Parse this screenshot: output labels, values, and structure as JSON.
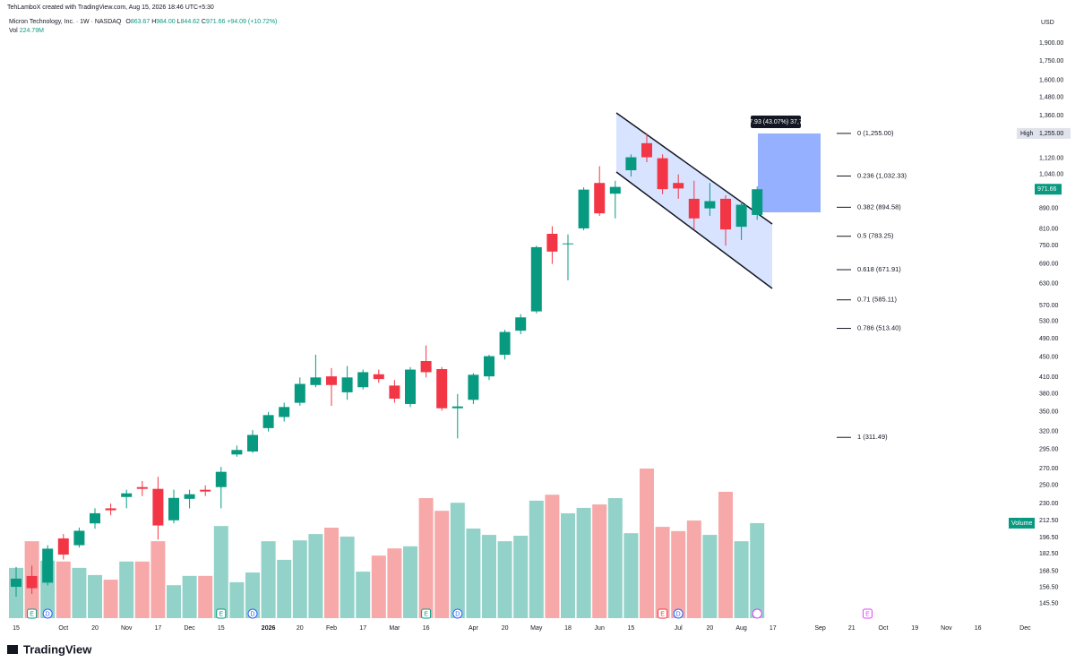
{
  "header": {
    "credit": "TehLamboX created with TradingView.com, Aug 15, 2026 18:46 UTC+5:30",
    "symbol": "Micron Technology, Inc. · 1W · NASDAQ",
    "ohlc": [
      {
        "key": "O",
        "text": "863.67"
      },
      {
        "key": "H",
        "text": "984.00"
      },
      {
        "key": "L",
        "text": "844.62"
      },
      {
        "key": "C",
        "text": "971.66"
      }
    ],
    "change": "+94.09 (+10.72%)",
    "volume": {
      "key": "Vol",
      "text": "224.79M"
    }
  },
  "brand": "TradingView",
  "chart_data": {
    "type": "candlestick",
    "currency": "USD",
    "log_scale": true,
    "grid": false,
    "categories": [
      "15",
      null,
      null,
      "Oct",
      null,
      "20",
      null,
      "Nov",
      null,
      "17",
      null,
      "Dec",
      null,
      "15",
      null,
      null,
      "2026",
      null,
      "20",
      null,
      "Feb",
      null,
      "17",
      null,
      "Mar",
      null,
      "16",
      null,
      null,
      "Apr",
      null,
      "20",
      null,
      "May",
      null,
      "18",
      null,
      "Jun",
      null,
      "15",
      null,
      null,
      "Jul",
      null,
      "20",
      null,
      "Aug",
      null,
      "17",
      null,
      null,
      "Sep",
      null,
      "21",
      null,
      "Oct",
      null,
      "19",
      null,
      "Nov",
      null,
      "16",
      null,
      null,
      "Dec"
    ],
    "series": [
      {
        "up_color": "#089981",
        "down_color": "#f23645",
        "values": [
          {
            "open": 157,
            "high": 172,
            "low": 150,
            "close": 163
          },
          {
            "open": 165,
            "high": 173,
            "low": 152,
            "close": 156
          },
          {
            "open": 160,
            "high": 190,
            "low": 158,
            "close": 187
          },
          {
            "open": 196,
            "high": 200,
            "low": 178,
            "close": 182
          },
          {
            "open": 190,
            "high": 206,
            "low": 188,
            "close": 203
          },
          {
            "open": 210,
            "high": 225,
            "low": 205,
            "close": 220
          },
          {
            "open": 225,
            "high": 230,
            "low": 218,
            "close": 223
          },
          {
            "open": 237,
            "high": 245,
            "low": 225,
            "close": 241
          },
          {
            "open": 248,
            "high": 255,
            "low": 238,
            "close": 246
          },
          {
            "open": 246,
            "high": 260,
            "low": 195,
            "close": 208
          },
          {
            "open": 213,
            "high": 245,
            "low": 210,
            "close": 236
          },
          {
            "open": 235,
            "high": 245,
            "low": 225,
            "close": 240
          },
          {
            "open": 245,
            "high": 250,
            "low": 238,
            "close": 243
          },
          {
            "open": 248,
            "high": 272,
            "low": 225,
            "close": 266
          },
          {
            "open": 288,
            "high": 300,
            "low": 285,
            "close": 294
          },
          {
            "open": 292,
            "high": 322,
            "low": 290,
            "close": 315
          },
          {
            "open": 325,
            "high": 350,
            "low": 320,
            "close": 345
          },
          {
            "open": 342,
            "high": 365,
            "low": 335,
            "close": 358
          },
          {
            "open": 365,
            "high": 410,
            "low": 360,
            "close": 398
          },
          {
            "open": 396,
            "high": 455,
            "low": 392,
            "close": 410
          },
          {
            "open": 412,
            "high": 428,
            "low": 360,
            "close": 396
          },
          {
            "open": 383,
            "high": 432,
            "low": 370,
            "close": 410
          },
          {
            "open": 392,
            "high": 425,
            "low": 388,
            "close": 420
          },
          {
            "open": 416,
            "high": 425,
            "low": 400,
            "close": 407
          },
          {
            "open": 395,
            "high": 405,
            "low": 365,
            "close": 372
          },
          {
            "open": 363,
            "high": 430,
            "low": 358,
            "close": 425
          },
          {
            "open": 442,
            "high": 475,
            "low": 410,
            "close": 420
          },
          {
            "open": 426,
            "high": 430,
            "low": 352,
            "close": 356
          },
          {
            "open": 356,
            "high": 380,
            "low": 310,
            "close": 359
          },
          {
            "open": 370,
            "high": 418,
            "low": 363,
            "close": 415
          },
          {
            "open": 412,
            "high": 455,
            "low": 405,
            "close": 452
          },
          {
            "open": 455,
            "high": 510,
            "low": 445,
            "close": 505
          },
          {
            "open": 508,
            "high": 548,
            "low": 500,
            "close": 540
          },
          {
            "open": 555,
            "high": 750,
            "low": 550,
            "close": 745
          },
          {
            "open": 792,
            "high": 820,
            "low": 690,
            "close": 730
          },
          {
            "open": 755,
            "high": 790,
            "low": 640,
            "close": 758
          },
          {
            "open": 812,
            "high": 980,
            "low": 805,
            "close": 970
          },
          {
            "open": 1000,
            "high": 1080,
            "low": 860,
            "close": 870
          },
          {
            "open": 952,
            "high": 1010,
            "low": 850,
            "close": 982
          },
          {
            "open": 1060,
            "high": 1140,
            "low": 1030,
            "close": 1125
          },
          {
            "open": 1200,
            "high": 1255,
            "low": 1100,
            "close": 1125
          },
          {
            "open": 1120,
            "high": 1140,
            "low": 950,
            "close": 972
          },
          {
            "open": 1000,
            "high": 1040,
            "low": 930,
            "close": 975
          },
          {
            "open": 930,
            "high": 1010,
            "low": 810,
            "close": 850
          },
          {
            "open": 890,
            "high": 1000,
            "low": 860,
            "close": 920
          },
          {
            "open": 930,
            "high": 945,
            "low": 750,
            "close": 808
          },
          {
            "open": 818,
            "high": 920,
            "low": 770,
            "close": 905
          },
          {
            "open": 863.67,
            "high": 984,
            "low": 844.62,
            "close": 971.66
          },
          null,
          null,
          null,
          null,
          null,
          null,
          null,
          null,
          null,
          null,
          null,
          null,
          null,
          null,
          null,
          null,
          null
        ]
      },
      {
        "name": "Volume",
        "up_color": "#92d2c9",
        "down_color": "#f6a9a8",
        "values": [
          119,
          182,
          136,
          134,
          119,
          102,
          91,
          134,
          134,
          182,
          78,
          100,
          100,
          218,
          85,
          108,
          182,
          138,
          184,
          199,
          214,
          193,
          110,
          148,
          165,
          170,
          284,
          254,
          273,
          212,
          197,
          182,
          195,
          278,
          292,
          248,
          261,
          269,
          284,
          201,
          354,
          216,
          206,
          231,
          197,
          299,
          182,
          224.79,
          null,
          null,
          null,
          null,
          null,
          null,
          null,
          null,
          null,
          null,
          null,
          null,
          null,
          null,
          null,
          null,
          null
        ]
      }
    ],
    "ylim": [
      136,
      1963
    ],
    "yticks": [
      {
        "value": 1900,
        "label": "1,900.00"
      },
      {
        "value": 1750,
        "label": "1,750.00"
      },
      {
        "value": 1600,
        "label": "1,600.00"
      },
      {
        "value": 1480,
        "label": "1,480.00"
      },
      {
        "value": 1360,
        "label": "1,360.00"
      },
      {
        "value": 1120,
        "label": "1,120.00"
      },
      {
        "value": 1040,
        "label": "1,040.00"
      },
      {
        "value": 890,
        "label": "890.00"
      },
      {
        "value": 810,
        "label": "810.00"
      },
      {
        "value": 750,
        "label": "750.00"
      },
      {
        "value": 690,
        "label": "690.00"
      },
      {
        "value": 630,
        "label": "630.00"
      },
      {
        "value": 570,
        "label": "570.00"
      },
      {
        "value": 530,
        "label": "530.00"
      },
      {
        "value": 490,
        "label": "490.00"
      },
      {
        "value": 450,
        "label": "450.00"
      },
      {
        "value": 410,
        "label": "410.00"
      },
      {
        "value": 380,
        "label": "380.00"
      },
      {
        "value": 350,
        "label": "350.00"
      },
      {
        "value": 320,
        "label": "320.00"
      },
      {
        "value": 295,
        "label": "295.00"
      },
      {
        "value": 270,
        "label": "270.00"
      },
      {
        "value": 250,
        "label": "250.00"
      },
      {
        "value": 230,
        "label": "230.00"
      },
      {
        "value": 212.5,
        "label": "212.50"
      },
      {
        "value": 196.5,
        "label": "196.50"
      },
      {
        "value": 182.5,
        "label": "182.50"
      },
      {
        "value": 168.5,
        "label": "168.50"
      },
      {
        "value": 156.5,
        "label": "156.50"
      },
      {
        "value": 145.5,
        "label": "145.50"
      }
    ],
    "high_marker": {
      "tag": "High",
      "value": 1255,
      "label": "1,255.00"
    },
    "fib_levels": [
      {
        "value": 1255,
        "label": "0 (1,255.00)"
      },
      {
        "value": 1032.33,
        "label": "0.236 (1,032.33)"
      },
      {
        "value": 894.58,
        "label": "0.382 (894.58)"
      },
      {
        "value": 783.25,
        "label": "0.5 (783.25)"
      },
      {
        "value": 671.91,
        "label": "0.618 (671.91)"
      },
      {
        "value": 585.11,
        "label": "0.71 (585.11)"
      },
      {
        "value": 513.4,
        "label": "0.786 (513.40)"
      },
      {
        "value": 311.49,
        "label": "1 (311.49)"
      }
    ],
    "measure": {
      "label": "377.93 (43.07%) 37,793"
    },
    "events": [
      {
        "x": 1,
        "label": "E",
        "color": "#089981"
      },
      {
        "x": 2,
        "label": "D",
        "color": "#2962ff"
      },
      {
        "x": 13,
        "label": "E",
        "color": "#089981"
      },
      {
        "x": 15,
        "label": "D",
        "color": "#2962ff"
      },
      {
        "x": 26,
        "label": "E",
        "color": "#089981"
      },
      {
        "x": 28,
        "label": "D",
        "color": "#2962ff"
      },
      {
        "x": 41,
        "label": "E",
        "color": "#f23645"
      },
      {
        "x": 42,
        "label": "D",
        "color": "#2962ff"
      },
      {
        "x": 54,
        "label": "E",
        "color": "#e040fb"
      }
    ]
  }
}
